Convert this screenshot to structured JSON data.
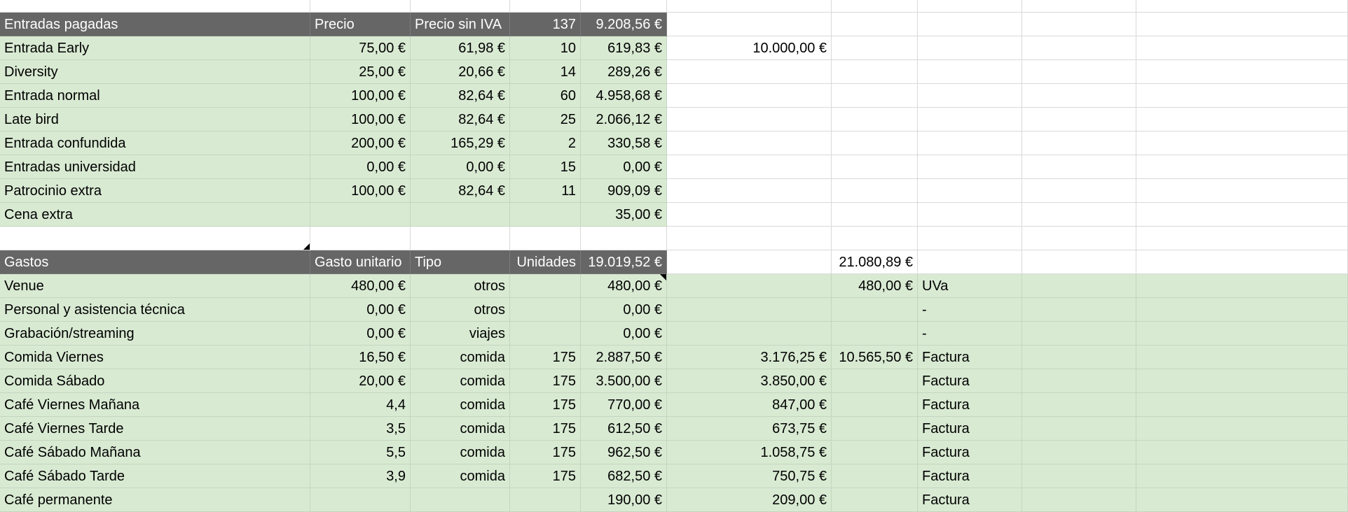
{
  "sheet": {
    "income": {
      "header": [
        "Entradas pagadas",
        "Precio",
        "Precio sin IVA",
        "137",
        "9.208,56 €"
      ],
      "rows": [
        [
          "Entrada Early",
          "75,00 €",
          "61,98 €",
          "10",
          "619,83 €",
          "10.000,00 €",
          "",
          ""
        ],
        [
          "Diversity",
          "25,00 €",
          "20,66 €",
          "14",
          "289,26 €",
          "",
          "",
          ""
        ],
        [
          "Entrada normal",
          "100,00 €",
          "82,64 €",
          "60",
          "4.958,68 €",
          "",
          "",
          ""
        ],
        [
          "Late bird",
          "100,00 €",
          "82,64 €",
          "25",
          "2.066,12 €",
          "",
          "",
          ""
        ],
        [
          "Entrada confundida",
          "200,00 €",
          "165,29 €",
          "2",
          "330,58 €",
          "",
          "",
          ""
        ],
        [
          "Entradas universidad",
          "0,00 €",
          "0,00 €",
          "15",
          "0,00 €",
          "",
          "",
          ""
        ],
        [
          "Patrocinio extra",
          "100,00 €",
          "82,64 €",
          "11",
          "909,09 €",
          "",
          "",
          ""
        ],
        [
          "Cena extra",
          "",
          "",
          "",
          "35,00 €",
          "",
          "",
          ""
        ]
      ]
    },
    "expenses": {
      "header": [
        "Gastos",
        "Gasto unitario",
        "Tipo",
        "Unidades",
        "19.019,52 €",
        "",
        "21.080,89 €",
        ""
      ],
      "rows": [
        [
          "Venue",
          "480,00 €",
          "otros",
          "",
          "480,00 €",
          "",
          "480,00 €",
          "UVa"
        ],
        [
          "Personal y asistencia técnica",
          "0,00 €",
          "otros",
          "",
          "0,00 €",
          "",
          "",
          "-"
        ],
        [
          "Grabación/streaming",
          "0,00 €",
          "viajes",
          "",
          "0,00 €",
          "",
          "",
          "-"
        ],
        [
          "Comida Viernes",
          "16,50 €",
          "comida",
          "175",
          "2.887,50 €",
          "3.176,25 €",
          "10.565,50 €",
          "Factura"
        ],
        [
          "Comida Sábado",
          "20,00 €",
          "comida",
          "175",
          "3.500,00 €",
          "3.850,00 €",
          "",
          "Factura"
        ],
        [
          "Café Viernes Mañana",
          "4,4",
          "comida",
          "175",
          "770,00 €",
          "847,00 €",
          "",
          "Factura"
        ],
        [
          "Café Viernes Tarde",
          "3,5",
          "comida",
          "175",
          "612,50 €",
          "673,75 €",
          "",
          "Factura"
        ],
        [
          "Café Sábado Mañana",
          "5,5",
          "comida",
          "175",
          "962,50 €",
          "1.058,75 €",
          "",
          "Factura"
        ],
        [
          "Café Sábado Tarde",
          "3,9",
          "comida",
          "175",
          "682,50 €",
          "750,75 €",
          "",
          "Factura"
        ],
        [
          "Café permanente",
          "",
          "",
          "",
          "190,00 €",
          "209,00 €",
          "",
          "Factura"
        ]
      ]
    },
    "colors": {
      "header_bg": "#666666",
      "row_bg": "#d9ead3",
      "gridline": "#d9d9d9"
    }
  }
}
